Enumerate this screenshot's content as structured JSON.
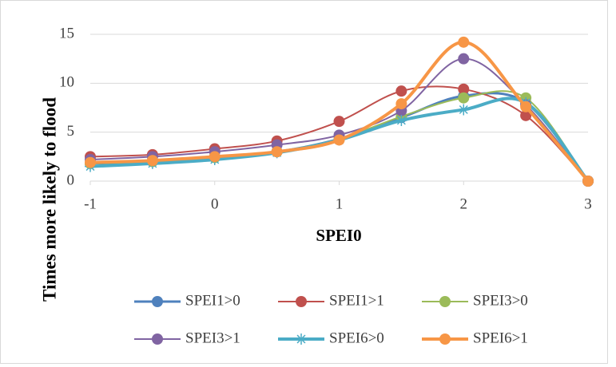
{
  "chart_data": {
    "type": "line",
    "smooth": true,
    "x_label": "SPEI0",
    "y_label": "Times more likely to flood",
    "x": [
      -1,
      -0.5,
      0,
      0.5,
      1,
      1.5,
      2,
      2.5,
      3
    ],
    "xlim": [
      -1,
      3
    ],
    "xticks": [
      -1,
      0,
      1,
      2,
      3
    ],
    "ylim": [
      0,
      15
    ],
    "yticks": [
      0,
      5,
      10,
      15
    ],
    "grid": true,
    "legend": "bottom",
    "series": [
      {
        "name": "SPEI1>0",
        "color": "#4f81bd",
        "marker": "circle",
        "line_width": 3,
        "values": [
          1.8,
          2.0,
          2.5,
          3.0,
          4.3,
          6.5,
          8.7,
          8.0,
          0
        ]
      },
      {
        "name": "SPEI1>1",
        "color": "#c0504d",
        "marker": "circle",
        "line_width": 2,
        "values": [
          2.5,
          2.7,
          3.3,
          4.1,
          6.1,
          9.2,
          9.4,
          6.7,
          0
        ]
      },
      {
        "name": "SPEI3>0",
        "color": "#9bbb59",
        "marker": "circle",
        "line_width": 2,
        "values": [
          1.8,
          2.0,
          2.4,
          3.0,
          4.3,
          6.6,
          8.5,
          8.5,
          0
        ]
      },
      {
        "name": "SPEI3>1",
        "color": "#8064a2",
        "marker": "circle",
        "line_width": 2,
        "values": [
          2.2,
          2.5,
          3.0,
          3.7,
          4.7,
          7.2,
          12.5,
          7.8,
          0
        ]
      },
      {
        "name": "SPEI6>0",
        "color": "#4bacc6",
        "marker": "star",
        "line_width": 4,
        "values": [
          1.5,
          1.8,
          2.2,
          2.9,
          4.2,
          6.2,
          7.3,
          8.0,
          0
        ]
      },
      {
        "name": "SPEI6>1",
        "color": "#f79646",
        "marker": "circle",
        "line_width": 4,
        "values": [
          1.9,
          2.1,
          2.5,
          3.0,
          4.2,
          7.9,
          14.2,
          7.6,
          0
        ]
      }
    ]
  }
}
